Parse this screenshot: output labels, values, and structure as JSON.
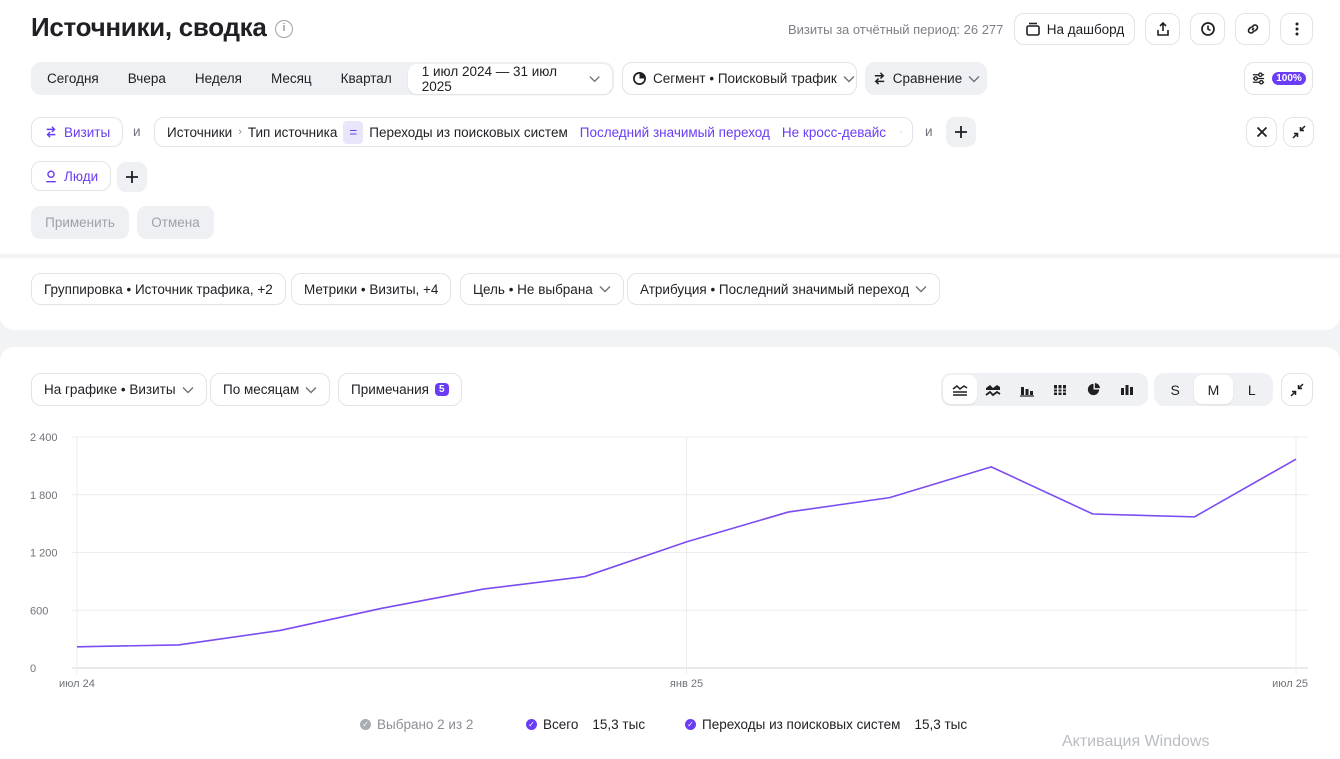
{
  "header": {
    "title": "Источники, сводка",
    "info_icon": "i",
    "visits_total": "Визиты за отчётный период: 26 277",
    "dashboard_label": "На дашборд"
  },
  "period": {
    "options": [
      "Сегодня",
      "Вчера",
      "Неделя",
      "Месяц",
      "Квартал"
    ],
    "range": "1 июл 2024 — 31 июл 2025",
    "segment": "Сегмент • Поисковый трафик",
    "comparison": "Сравнение",
    "sampling": "100%"
  },
  "filter": {
    "visits_label": "Визиты",
    "and": "и",
    "path_a": "Источники",
    "path_b": "Тип источника",
    "op": "=",
    "value": "Переходы из поисковых систем",
    "attr_a": "Последний значимый переход",
    "attr_b": "Не кросс-девайс",
    "and2": "и",
    "people_label": "Люди",
    "apply": "Применить",
    "cancel": "Отмена"
  },
  "settings": {
    "grouping": "Группировка • Источник трафика, +2",
    "metrics": "Метрики • Визиты, +4",
    "goal": "Цель • Не выбрана",
    "attribution": "Атрибуция • Последний значимый переход"
  },
  "chart_controls": {
    "metric": "На графике • Визиты",
    "period": "По месяцам",
    "notes": "Примечания",
    "notes_count": "5",
    "sizes": [
      "S",
      "M",
      "L"
    ],
    "selected_size": "M"
  },
  "chart_data": {
    "type": "line",
    "x": [
      "2024-07",
      "2024-08",
      "2024-09",
      "2024-10",
      "2024-11",
      "2024-12",
      "2025-01",
      "2025-02",
      "2025-03",
      "2025-04",
      "2025-05",
      "2025-06",
      "2025-07"
    ],
    "series": [
      {
        "name": "Переходы из поисковых систем",
        "values": [
          220,
          240,
          390,
          620,
          820,
          950,
          1310,
          1620,
          1770,
          2090,
          1600,
          1570,
          2170
        ],
        "color": "#7b4cf2"
      }
    ],
    "y_ticks": [
      "2 400",
      "1 800",
      "1 200",
      "600",
      "0"
    ],
    "ylim": [
      0,
      2400
    ],
    "x_tick_labels": [
      "июл 24",
      "янв 25",
      "июл 25"
    ],
    "grid": true
  },
  "legend": {
    "selected": "Выбрано 2 из 2",
    "total_label": "Всего",
    "total_value": "15,3 тыс",
    "series_label": "Переходы из поисковых систем",
    "series_value": "15,3 тыс"
  },
  "watermark": "Активация Windows"
}
